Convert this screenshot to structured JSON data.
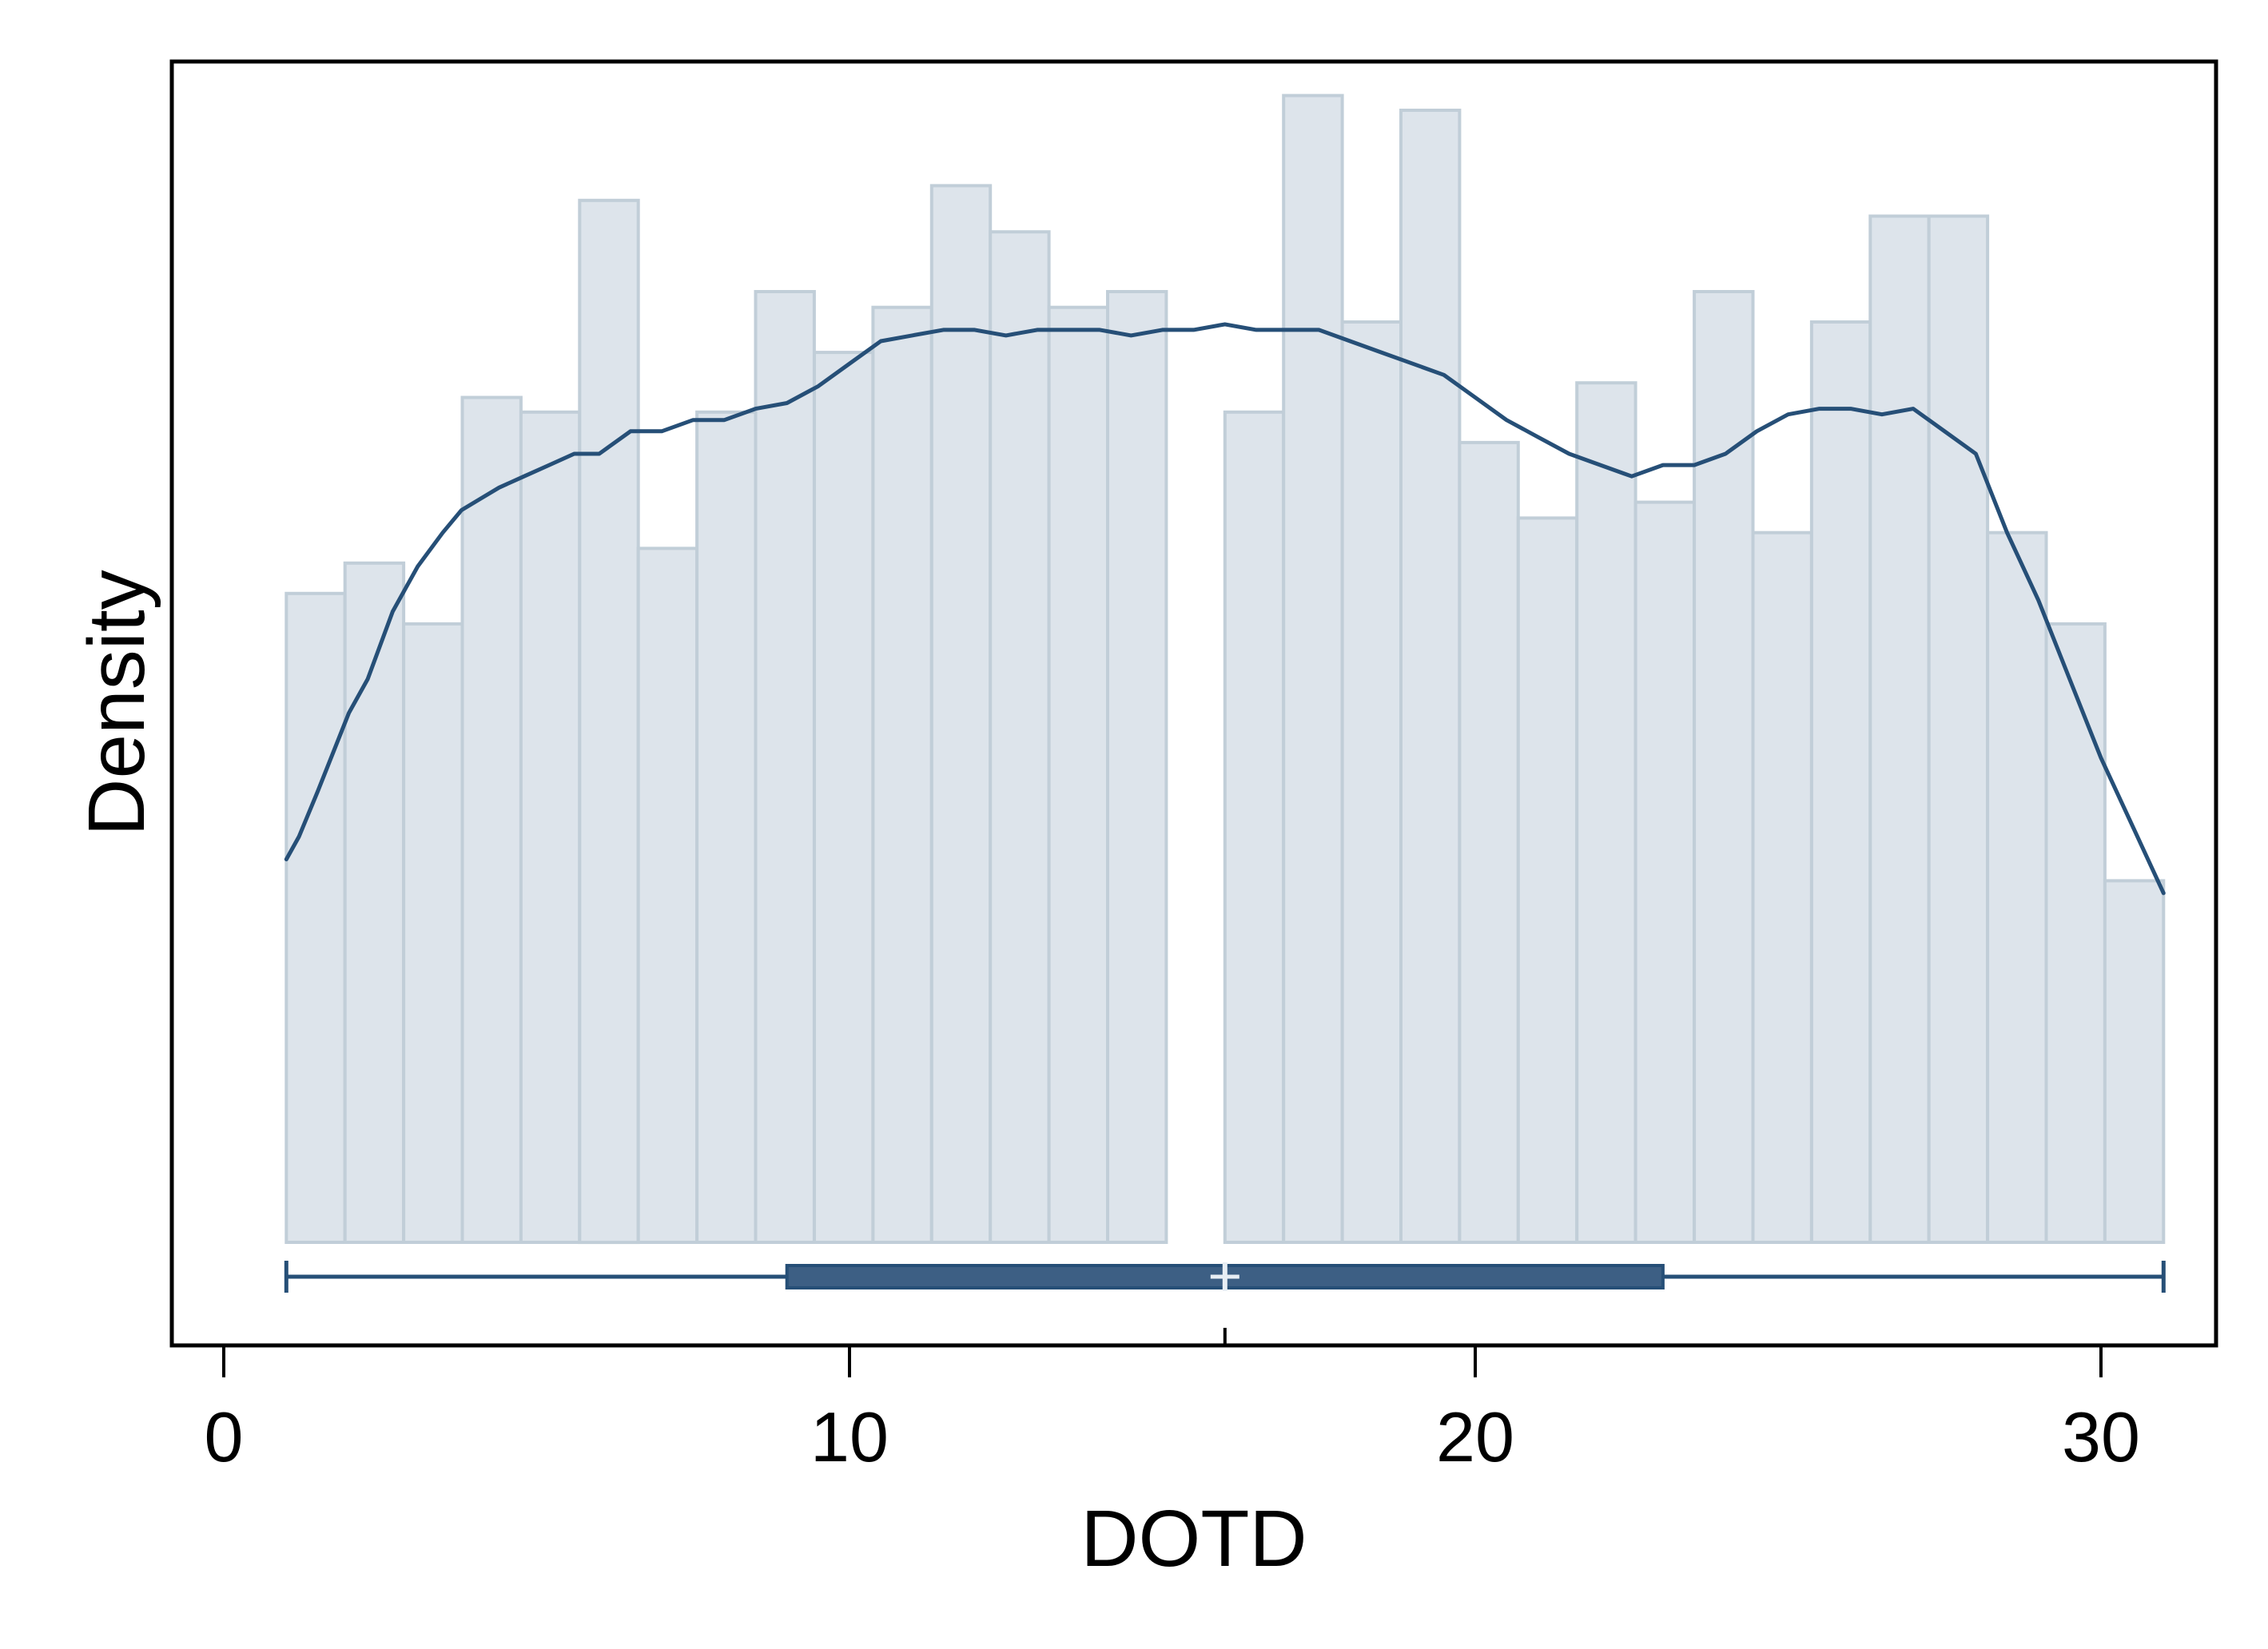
{
  "chart_data": {
    "type": "histogram",
    "title": "",
    "xlabel": "DOTD",
    "ylabel": "Density",
    "xlim": [
      -0.7,
      31.9
    ],
    "ylim": [
      0,
      1
    ],
    "y_ticks_shown": false,
    "x_ticks": [
      0,
      10,
      20,
      30
    ],
    "x_tick_labels": [
      "0",
      "10",
      "20",
      "30"
    ],
    "grid": false,
    "legend": "none",
    "colors": {
      "bar_fill": "#dde4eb",
      "bar_edge": "#c1ced8",
      "kde_line": "#264f77",
      "box": "#3d5f84",
      "axis": "#000000"
    },
    "histogram": {
      "bin_width": 0.9375,
      "bins": [
        {
          "x0": 1.0,
          "x1": 1.9375,
          "density": 0.576
        },
        {
          "x0": 1.9375,
          "x1": 2.875,
          "density": 0.603
        },
        {
          "x0": 2.875,
          "x1": 3.8125,
          "density": 0.549
        },
        {
          "x0": 3.8125,
          "x1": 4.75,
          "density": 0.75
        },
        {
          "x0": 4.75,
          "x1": 5.6875,
          "density": 0.737
        },
        {
          "x0": 5.6875,
          "x1": 6.625,
          "density": 0.925
        },
        {
          "x0": 6.625,
          "x1": 7.5625,
          "density": 0.616
        },
        {
          "x0": 7.5625,
          "x1": 8.5,
          "density": 0.737
        },
        {
          "x0": 8.5,
          "x1": 9.4375,
          "density": 0.844
        },
        {
          "x0": 9.4375,
          "x1": 10.375,
          "density": 0.79
        },
        {
          "x0": 10.375,
          "x1": 11.3125,
          "density": 0.83
        },
        {
          "x0": 11.3125,
          "x1": 12.25,
          "density": 0.938
        },
        {
          "x0": 12.25,
          "x1": 13.1875,
          "density": 0.897
        },
        {
          "x0": 13.1875,
          "x1": 14.125,
          "density": 0.83
        },
        {
          "x0": 14.125,
          "x1": 15.0625,
          "density": 0.844
        },
        {
          "x0": 15.0625,
          "x1": 16.0,
          "density": 0.0
        },
        {
          "x0": 16.0,
          "x1": 16.9375,
          "density": 0.737
        },
        {
          "x0": 16.9375,
          "x1": 17.875,
          "density": 1.018
        },
        {
          "x0": 17.875,
          "x1": 18.8125,
          "density": 0.817
        },
        {
          "x0": 18.8125,
          "x1": 19.75,
          "density": 1.005
        },
        {
          "x0": 19.75,
          "x1": 20.6875,
          "density": 0.71
        },
        {
          "x0": 20.6875,
          "x1": 21.625,
          "density": 0.643
        },
        {
          "x0": 21.625,
          "x1": 22.5625,
          "density": 0.763
        },
        {
          "x0": 22.5625,
          "x1": 23.5,
          "density": 0.657
        },
        {
          "x0": 23.5,
          "x1": 24.4375,
          "density": 0.844
        },
        {
          "x0": 24.4375,
          "x1": 25.375,
          "density": 0.63
        },
        {
          "x0": 25.375,
          "x1": 26.3125,
          "density": 0.817
        },
        {
          "x0": 26.3125,
          "x1": 27.25,
          "density": 0.911
        },
        {
          "x0": 27.25,
          "x1": 28.1875,
          "density": 0.911
        },
        {
          "x0": 28.1875,
          "x1": 29.125,
          "density": 0.63
        },
        {
          "x0": 29.125,
          "x1": 30.0625,
          "density": 0.549
        },
        {
          "x0": 30.0625,
          "x1": 31.0,
          "density": 0.321
        }
      ]
    },
    "kde": {
      "x": [
        1.0,
        1.2,
        1.5,
        2.0,
        2.3,
        2.7,
        3.1,
        3.5,
        3.8,
        4.1,
        4.4,
        4.8,
        5.2,
        5.6,
        6.0,
        6.5,
        7.0,
        7.5,
        8.0,
        8.5,
        9.0,
        9.5,
        10.0,
        10.5,
        11.0,
        11.5,
        12.0,
        12.5,
        13.0,
        13.5,
        14.0,
        14.5,
        15.0,
        15.5,
        16.0,
        16.5,
        17.0,
        17.5,
        18.0,
        18.5,
        19.0,
        19.5,
        20.0,
        20.5,
        21.0,
        21.5,
        22.0,
        22.5,
        23.0,
        23.5,
        24.0,
        24.5,
        25.0,
        25.5,
        26.0,
        26.5,
        27.0,
        27.5,
        28.0,
        28.5,
        29.0,
        29.5,
        30.0,
        30.5,
        31.0
      ],
      "y": [
        0.34,
        0.36,
        0.4,
        0.47,
        0.5,
        0.56,
        0.6,
        0.63,
        0.65,
        0.66,
        0.67,
        0.68,
        0.69,
        0.7,
        0.7,
        0.72,
        0.72,
        0.73,
        0.73,
        0.74,
        0.745,
        0.76,
        0.78,
        0.8,
        0.805,
        0.81,
        0.81,
        0.805,
        0.81,
        0.81,
        0.81,
        0.805,
        0.81,
        0.81,
        0.815,
        0.81,
        0.81,
        0.81,
        0.8,
        0.79,
        0.78,
        0.77,
        0.75,
        0.73,
        0.715,
        0.7,
        0.69,
        0.68,
        0.69,
        0.69,
        0.7,
        0.72,
        0.735,
        0.74,
        0.74,
        0.735,
        0.74,
        0.72,
        0.7,
        0.63,
        0.57,
        0.5,
        0.43,
        0.37,
        0.31
      ]
    },
    "boxplot": {
      "min": 1,
      "q1": 9,
      "median": 16,
      "q3": 23,
      "max": 31
    }
  }
}
